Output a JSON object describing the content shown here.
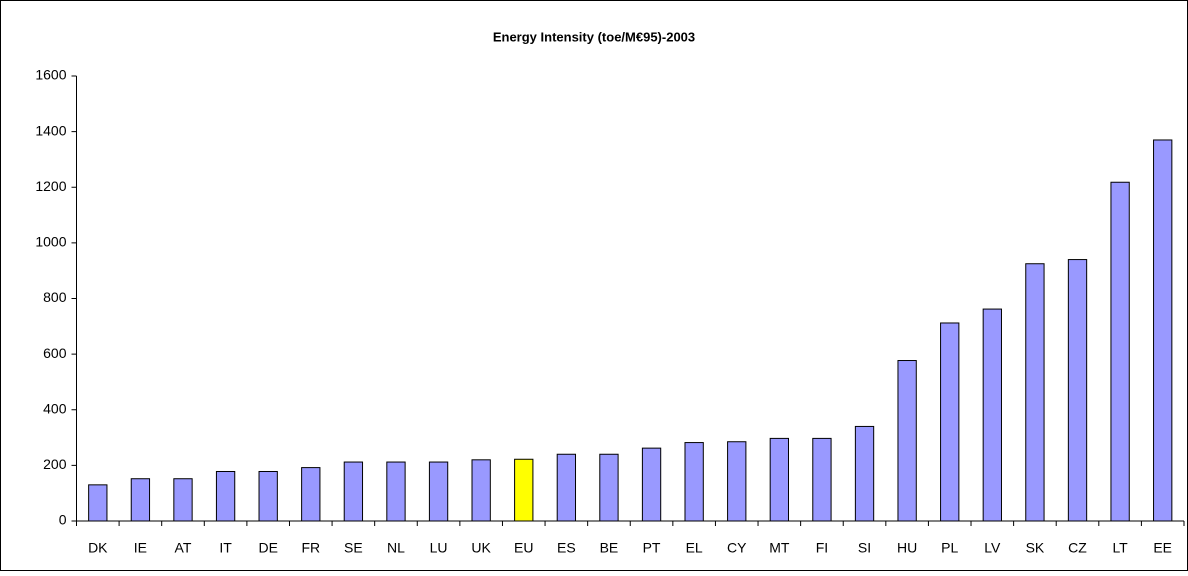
{
  "chart_data": {
    "type": "bar",
    "title": "Energy Intensity (toe/M€95)-2003",
    "categories": [
      "DK",
      "IE",
      "AT",
      "IT",
      "DE",
      "FR",
      "SE",
      "NL",
      "LU",
      "UK",
      "EU",
      "ES",
      "BE",
      "PT",
      "EL",
      "CY",
      "MT",
      "FI",
      "SI",
      "HU",
      "PL",
      "LV",
      "SK",
      "CZ",
      "LT",
      "EE"
    ],
    "values": [
      130,
      152,
      152,
      178,
      178,
      192,
      212,
      212,
      212,
      220,
      222,
      240,
      240,
      262,
      282,
      285,
      297,
      297,
      340,
      577,
      712,
      762,
      925,
      940,
      1218,
      1370
    ],
    "colors": [
      "#9999ff",
      "#9999ff",
      "#9999ff",
      "#9999ff",
      "#9999ff",
      "#9999ff",
      "#9999ff",
      "#9999ff",
      "#9999ff",
      "#9999ff",
      "#ffff00",
      "#9999ff",
      "#9999ff",
      "#9999ff",
      "#9999ff",
      "#9999ff",
      "#9999ff",
      "#9999ff",
      "#9999ff",
      "#9999ff",
      "#9999ff",
      "#9999ff",
      "#9999ff",
      "#9999ff",
      "#9999ff",
      "#9999ff"
    ],
    "ylim": [
      0,
      1600
    ],
    "yticks": [
      0,
      200,
      400,
      600,
      800,
      1000,
      1200,
      1400,
      1600
    ],
    "grid": false
  }
}
